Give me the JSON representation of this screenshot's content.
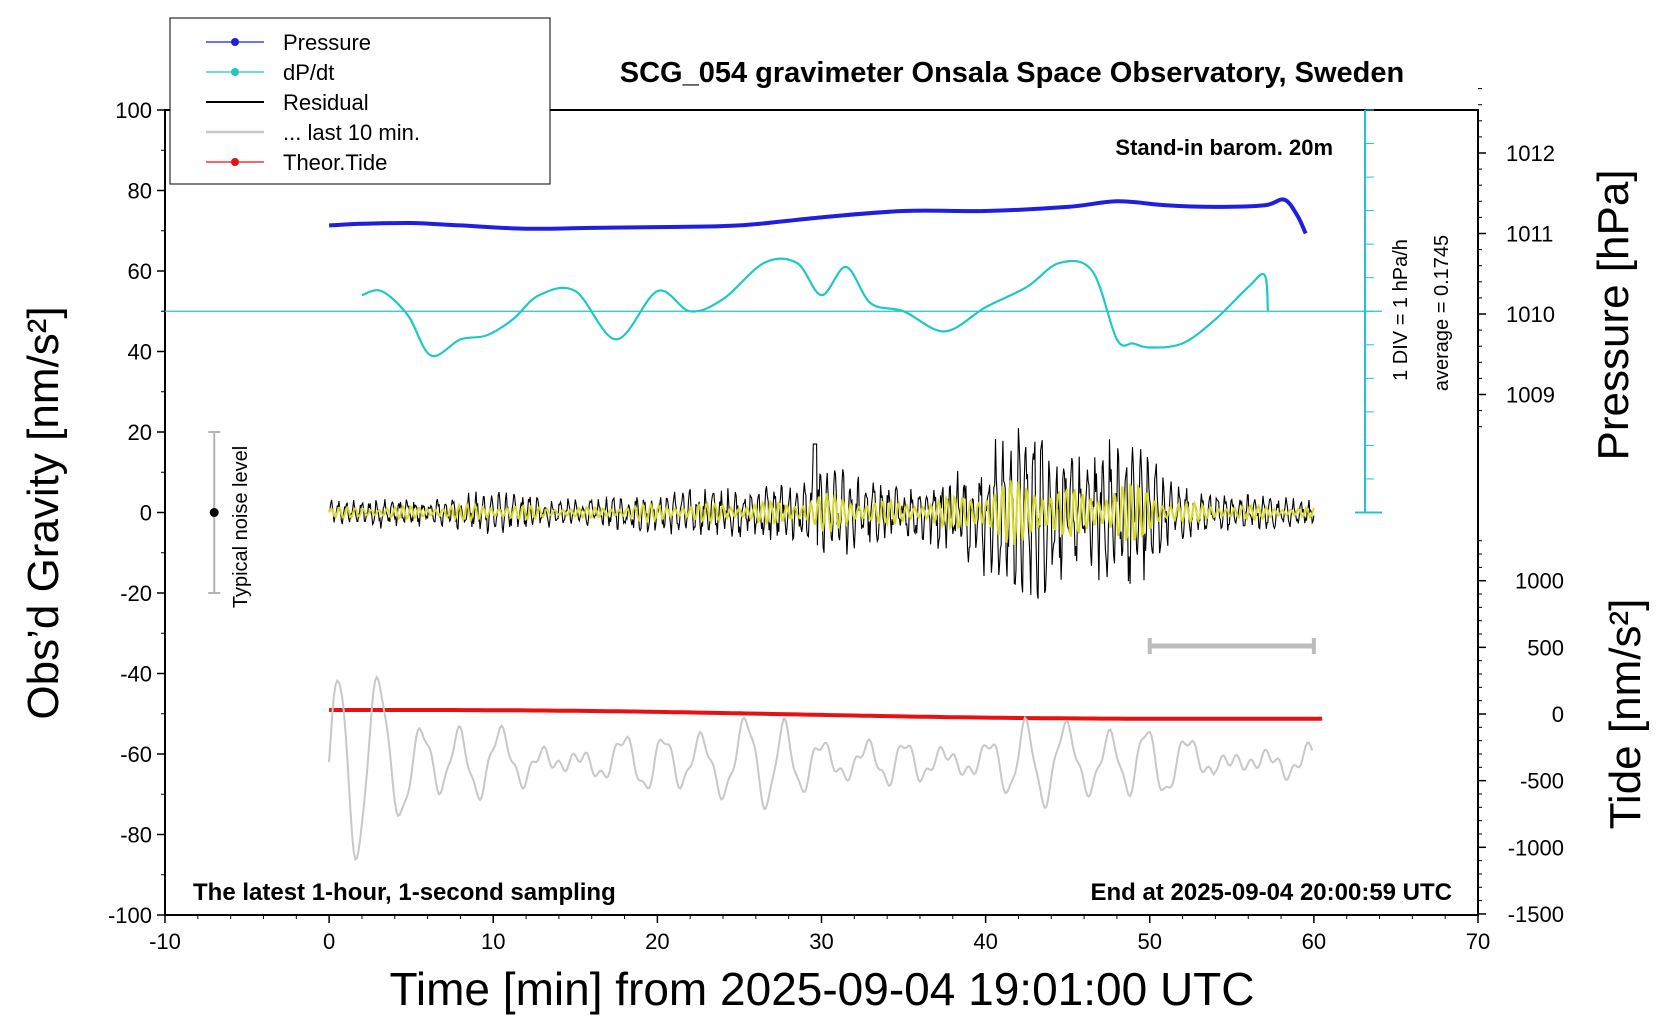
{
  "chart_data": {
    "type": "line",
    "title": "SCG_054 gravimeter Onsala Space Observatory, Sweden",
    "xlabel": "Time [min] from 2025-09-04 19:01:00 UTC",
    "ylabel_left": "Obs’d Gravity [nm/s²]",
    "ylabel_right_top": "Pressure [hPa]",
    "ylabel_right_bottom": "Tide [nm/s²]",
    "xlim": [
      -10,
      70
    ],
    "ylim_gravity": [
      -100,
      100
    ],
    "ylim_tide": [
      -1500,
      1500
    ],
    "x_ticks": [
      "-10",
      "0",
      "10",
      "20",
      "30",
      "40",
      "50",
      "60",
      "70"
    ],
    "y_ticks_left": [
      "100",
      "80",
      "60",
      "40",
      "20",
      "0",
      "-20",
      "-40",
      "-60",
      "-80",
      "-100"
    ],
    "y_ticks_pressure": [
      "1012",
      "1011",
      "1010",
      "1009"
    ],
    "y_ticks_tide": [
      "1000",
      "500",
      "0",
      "-500",
      "-1000",
      "-1500"
    ],
    "annotations": {
      "barometer": "Stand-in barom. 20m",
      "scale_div": "1 DIV = 1 hPa/h",
      "average": "average = 0.1745",
      "noise": "Typical noise level",
      "latest": "The latest 1-hour, 1-second sampling",
      "end": "End at 2025-09-04 20:00:59 UTC"
    },
    "legend": {
      "position": "top-left",
      "entries": [
        "Pressure",
        "dP/dt",
        "Residual",
        "... last 10 min.",
        "Theor.Tide"
      ]
    },
    "series": [
      {
        "name": "Pressure",
        "color": "#1f1fe0",
        "unit": "hPa",
        "x": [
          0,
          2,
          5,
          8,
          12,
          16,
          20,
          25,
          30,
          35,
          40,
          45,
          48,
          51,
          54,
          57,
          58.2,
          59,
          59.5
        ],
        "values": [
          1011.1,
          1011.12,
          1011.13,
          1011.1,
          1011.06,
          1011.07,
          1011.08,
          1011.1,
          1011.2,
          1011.28,
          1011.28,
          1011.33,
          1011.4,
          1011.35,
          1011.33,
          1011.35,
          1011.42,
          1011.22,
          1011.0
        ]
      },
      {
        "name": "dP/dt",
        "color": "#1fc8c8",
        "unit": "nm/s² equivalent",
        "x": [
          2,
          3.2,
          4.8,
          6.2,
          8,
          9.6,
          11.2,
          12.8,
          15,
          17.5,
          20,
          22,
          24,
          26.5,
          28.5,
          30,
          31.5,
          33,
          35,
          37.5,
          40,
          42.5,
          44.5,
          46.5,
          48,
          49,
          50,
          52,
          54,
          56,
          57,
          57.2
        ],
        "values": [
          54,
          55,
          49,
          39,
          43,
          44,
          48,
          54,
          55,
          43,
          55,
          50,
          53,
          62,
          62,
          54,
          61,
          52,
          50,
          45,
          51,
          56,
          62,
          60,
          43,
          42,
          41,
          42,
          48,
          56,
          59,
          50
        ]
      },
      {
        "name": "Residual",
        "color": "#000000",
        "unit": "nm/s²",
        "x": [
          0,
          5,
          10,
          15,
          20,
          25,
          29,
          30,
          35,
          38,
          40,
          42,
          43,
          44,
          46,
          48,
          49,
          50,
          51,
          53,
          55,
          57,
          60
        ],
        "values": [
          3,
          4,
          5,
          3,
          5,
          6,
          8,
          12,
          6,
          10,
          16,
          20,
          22,
          18,
          13,
          20,
          18,
          17,
          8,
          5,
          5,
          4,
          3
        ],
        "value_kind": "envelope amplitude"
      },
      {
        "name": "... last 10 min.",
        "color": "#c8c8c8",
        "unit": "nm/s²",
        "x_range": [
          50,
          60
        ]
      },
      {
        "name": "Theor.Tide",
        "color": "#e81010",
        "unit": "nm/s²",
        "x": [
          0,
          60.5
        ],
        "values": [
          30,
          -40
        ]
      }
    ]
  }
}
